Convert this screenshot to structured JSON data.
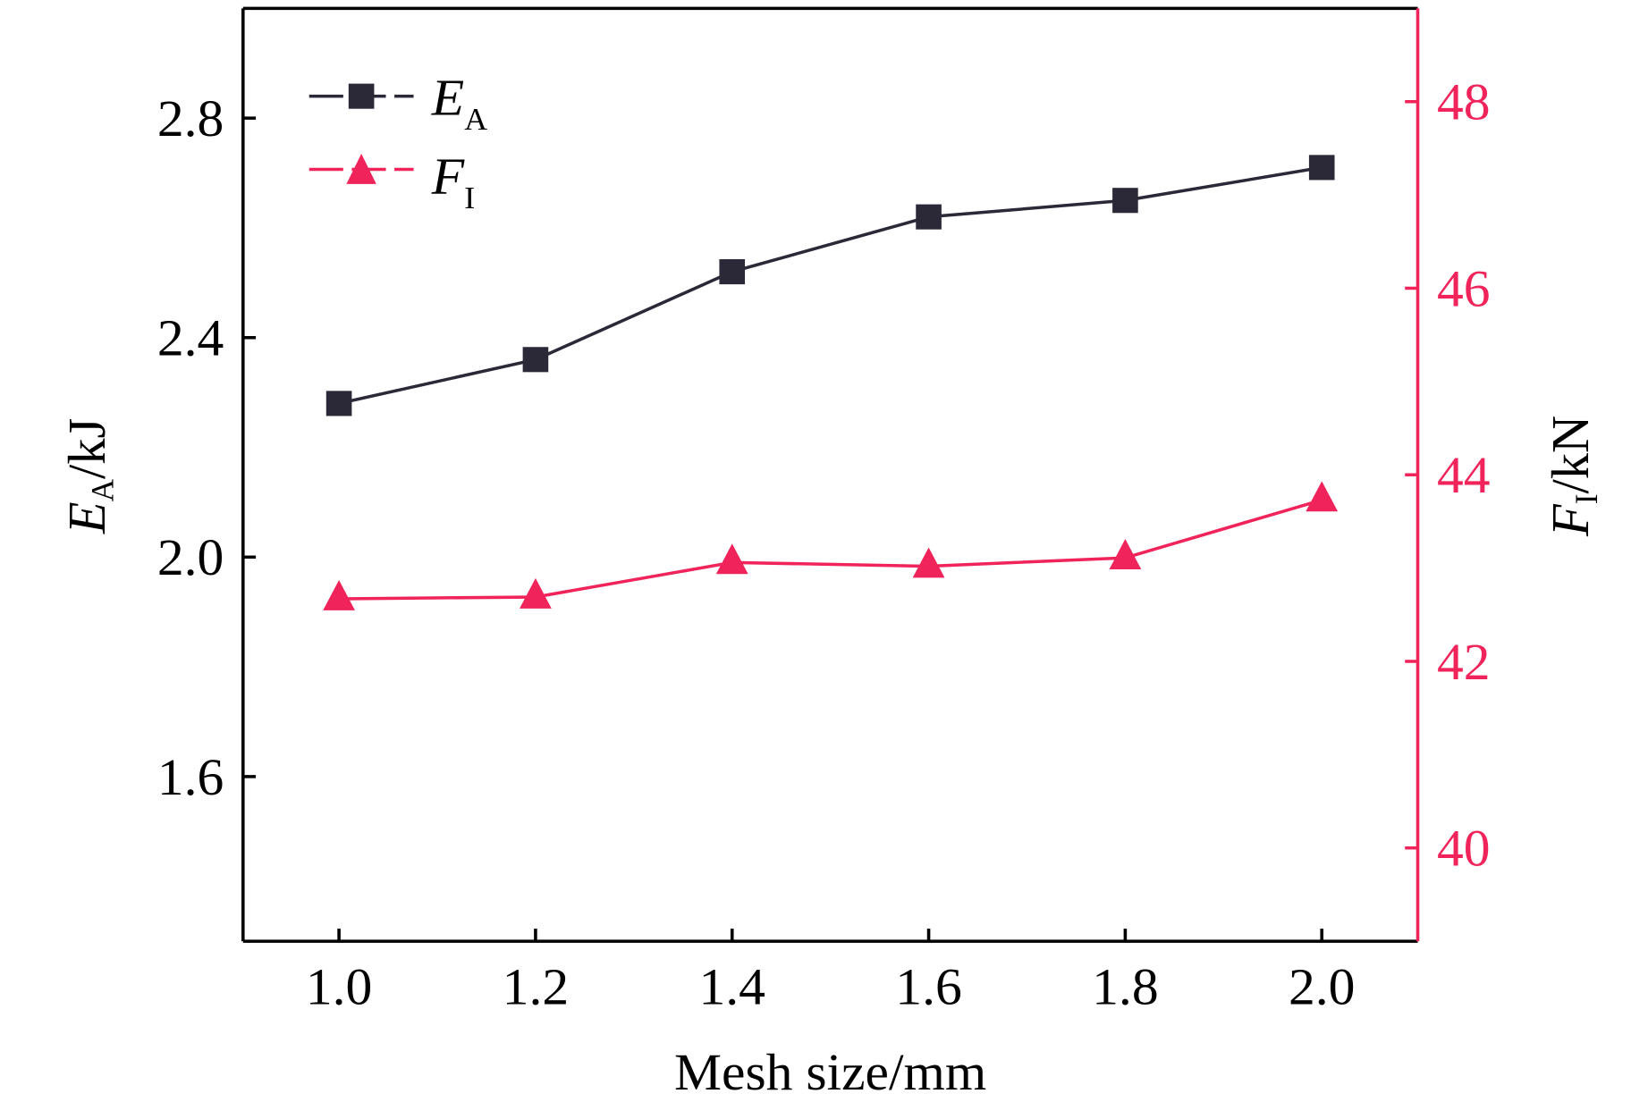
{
  "chart_data": {
    "type": "line",
    "xlabel": "Mesh size/mm",
    "ylabel": {
      "main": "E",
      "sub": "A",
      "unit": "/kJ"
    },
    "y2label": {
      "main": "F",
      "sub": "I",
      "unit": "/kN"
    },
    "x": [
      1.0,
      1.2,
      1.4,
      1.6,
      1.8,
      2.0
    ],
    "xlim": [
      0.9,
      2.1
    ],
    "xticks": [
      "1.0",
      "1.2",
      "1.4",
      "1.6",
      "1.8",
      "2.0"
    ],
    "ylim": [
      1.3,
      3.0
    ],
    "yticks": [
      "1.6",
      "2.0",
      "2.4",
      "2.8"
    ],
    "y2lim": [
      39,
      49
    ],
    "y2ticks": [
      "40",
      "42",
      "44",
      "46",
      "48"
    ],
    "series": [
      {
        "name": "E_A",
        "label_main": "E",
        "label_sub": "A",
        "axis": "left",
        "marker": "square",
        "color": "#2b2838",
        "values": [
          2.28,
          2.36,
          2.52,
          2.62,
          2.65,
          2.71
        ]
      },
      {
        "name": "F_I",
        "label_main": "F",
        "label_sub": "I",
        "axis": "right",
        "marker": "triangle",
        "color": "#f0245a",
        "values": [
          42.67,
          42.69,
          43.06,
          43.02,
          43.11,
          43.73
        ]
      }
    ],
    "legend": "top-left",
    "grid": false,
    "right_axis_color": "#f0245a"
  }
}
